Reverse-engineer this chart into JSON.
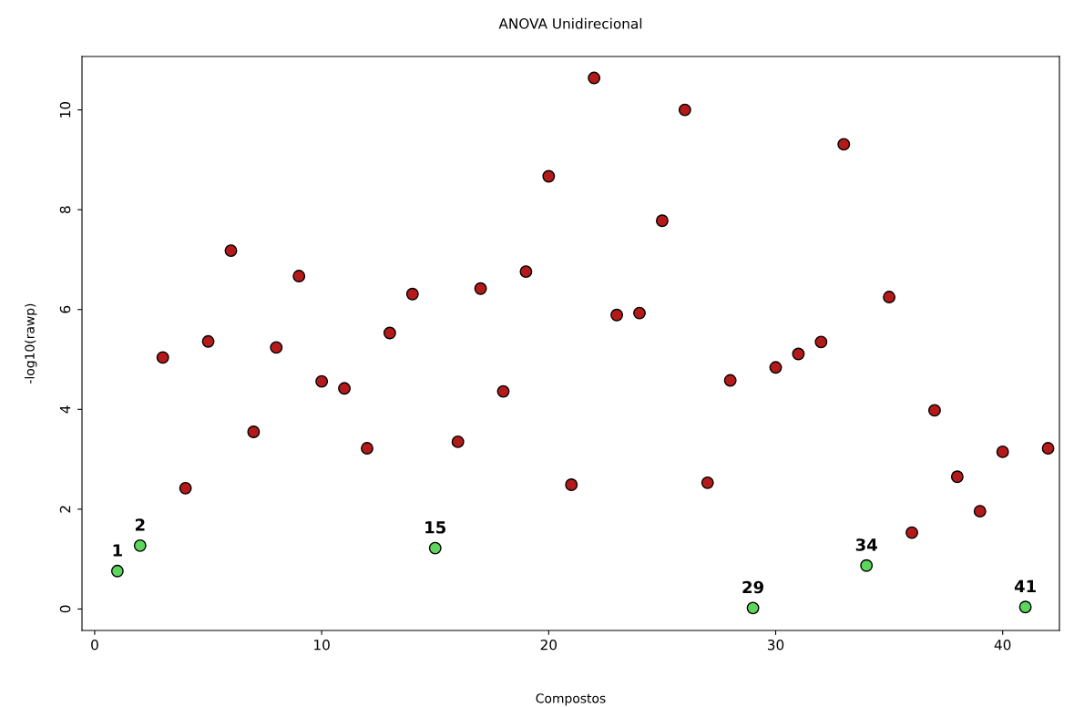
{
  "chart_data": {
    "type": "scatter",
    "title": "ANOVA Unidirecional",
    "xlabel": "Compostos",
    "ylabel": "-log10(rawp)",
    "xlim": [
      -0.56,
      42.5
    ],
    "ylim": [
      -0.43,
      11.07
    ],
    "xticks": [
      0,
      10,
      20,
      30,
      40
    ],
    "yticks": [
      0,
      2,
      4,
      6,
      8,
      10
    ],
    "grid": false,
    "legend": false,
    "marker": "circle",
    "series": [
      {
        "color": "#b51a1a",
        "x": [
          3,
          4,
          5,
          6,
          7,
          8,
          9,
          10,
          11,
          12,
          13,
          14,
          16,
          17,
          18,
          19,
          20,
          21,
          22,
          23,
          24,
          25,
          26,
          27,
          28,
          30,
          31,
          32,
          33,
          35,
          36,
          37,
          38,
          39,
          40,
          42
        ],
        "values": [
          5.04,
          2.42,
          5.36,
          7.18,
          3.55,
          5.24,
          6.67,
          4.56,
          4.42,
          3.22,
          5.53,
          6.31,
          3.35,
          6.42,
          4.36,
          6.76,
          8.67,
          2.49,
          10.64,
          5.89,
          5.93,
          7.78,
          10.0,
          2.53,
          4.58,
          4.84,
          5.11,
          5.35,
          9.31,
          6.25,
          1.53,
          3.98,
          2.65,
          1.96,
          3.15,
          3.22
        ]
      },
      {
        "color": "#5ed65e",
        "x": [
          1,
          2,
          15,
          29,
          34,
          41
        ],
        "values": [
          0.76,
          1.27,
          1.22,
          0.02,
          0.87,
          0.04
        ]
      }
    ],
    "annotations": [
      {
        "text": "1",
        "x": 1,
        "y": 0.76
      },
      {
        "text": "2",
        "x": 2,
        "y": 1.27
      },
      {
        "text": "15",
        "x": 15,
        "y": 1.22
      },
      {
        "text": "29",
        "x": 29,
        "y": 0.02
      },
      {
        "text": "34",
        "x": 34,
        "y": 0.87
      },
      {
        "text": "41",
        "x": 41,
        "y": 0.04
      }
    ]
  }
}
